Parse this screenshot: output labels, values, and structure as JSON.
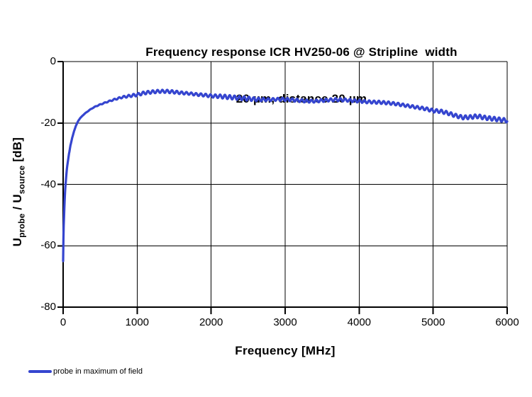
{
  "title": {
    "line1": "Frequency response ICR HV250-06 @ Stripline  width",
    "line2": "20 µm, distance 20 µm"
  },
  "axes": {
    "x": {
      "label": "Frequency [MHz]",
      "ticks": [
        "0",
        "1000",
        "2000",
        "3000",
        "4000",
        "5000",
        "6000"
      ]
    },
    "y": {
      "label_parts": {
        "u1": "U",
        "sub1": "probe",
        "mid": " / U",
        "sub2": "source",
        "unit": " [dB]"
      },
      "ticks": [
        "0",
        "-20",
        "-40",
        "-60",
        "-80"
      ]
    }
  },
  "legend": {
    "label": "probe in maximum of field"
  },
  "colors": {
    "series": "#3545CF",
    "axis": "#000000",
    "grid": "#000000",
    "background": "#FFFFFF",
    "text": "#000000"
  },
  "chart_data": {
    "type": "line",
    "title": "Frequency response ICR HV250-06 @ Stripline width 20 µm, distance 20 µm",
    "xlabel": "Frequency [MHz]",
    "ylabel": "Uprobe / Usource [dB]",
    "xlim": [
      0,
      6000
    ],
    "ylim": [
      -80,
      0
    ],
    "x_ticks": [
      0,
      1000,
      2000,
      3000,
      4000,
      5000,
      6000
    ],
    "y_ticks": [
      0,
      -20,
      -40,
      -60,
      -80
    ],
    "grid": true,
    "legend_position": "bottom-left",
    "series": [
      {
        "name": "probe in maximum of field",
        "color": "#3545CF",
        "trend_points": [
          [
            0,
            -65
          ],
          [
            4,
            -58
          ],
          [
            8,
            -53.5
          ],
          [
            12,
            -50.5
          ],
          [
            16,
            -47.8
          ],
          [
            20,
            -45.5
          ],
          [
            25,
            -43
          ],
          [
            30,
            -41
          ],
          [
            40,
            -37.8
          ],
          [
            50,
            -35.2
          ],
          [
            60,
            -33.2
          ],
          [
            80,
            -30
          ],
          [
            100,
            -27.2
          ],
          [
            125,
            -24.6
          ],
          [
            150,
            -22.5
          ],
          [
            175,
            -20.8
          ],
          [
            200,
            -19.5
          ],
          [
            225,
            -18.6
          ],
          [
            250,
            -17.9
          ],
          [
            300,
            -16.8
          ],
          [
            350,
            -15.9
          ],
          [
            400,
            -15.1
          ],
          [
            450,
            -14.5
          ],
          [
            500,
            -14.0
          ],
          [
            600,
            -13.1
          ],
          [
            700,
            -12.3
          ],
          [
            800,
            -11.6
          ],
          [
            900,
            -11.2
          ],
          [
            1000,
            -10.8
          ],
          [
            1100,
            -10.2
          ],
          [
            1200,
            -9.9
          ],
          [
            1300,
            -9.7
          ],
          [
            1400,
            -9.7
          ],
          [
            1500,
            -9.9
          ],
          [
            1600,
            -10.2
          ],
          [
            1700,
            -10.4
          ],
          [
            1800,
            -10.7
          ],
          [
            1900,
            -10.9
          ],
          [
            2000,
            -11.2
          ],
          [
            2100,
            -11.3
          ],
          [
            2200,
            -11.5
          ],
          [
            2300,
            -11.7
          ],
          [
            2400,
            -11.9
          ],
          [
            2500,
            -12.1
          ],
          [
            2600,
            -12.3
          ],
          [
            2700,
            -12.4
          ],
          [
            2800,
            -12.4
          ],
          [
            2900,
            -12.3
          ],
          [
            3000,
            -12.3
          ],
          [
            3100,
            -12.5
          ],
          [
            3200,
            -12.7
          ],
          [
            3300,
            -12.9
          ],
          [
            3400,
            -12.9
          ],
          [
            3500,
            -12.7
          ],
          [
            3600,
            -12.5
          ],
          [
            3700,
            -12.4
          ],
          [
            3800,
            -12.5
          ],
          [
            3900,
            -12.7
          ],
          [
            4000,
            -12.9
          ],
          [
            4100,
            -13.1
          ],
          [
            4200,
            -13.2
          ],
          [
            4300,
            -13.3
          ],
          [
            4400,
            -13.5
          ],
          [
            4500,
            -13.8
          ],
          [
            4600,
            -14.2
          ],
          [
            4700,
            -14.6
          ],
          [
            4800,
            -15.0
          ],
          [
            4900,
            -15.4
          ],
          [
            5000,
            -16.0
          ],
          [
            5100,
            -16.2
          ],
          [
            5200,
            -16.8
          ],
          [
            5300,
            -17.6
          ],
          [
            5400,
            -18.2
          ],
          [
            5500,
            -18.1
          ],
          [
            5600,
            -17.8
          ],
          [
            5700,
            -18.3
          ],
          [
            5800,
            -18.6
          ],
          [
            5900,
            -18.9
          ],
          [
            6000,
            -19.2
          ]
        ],
        "ripple": {
          "period_mhz": 65,
          "amplitude_anchors": [
            [
              0,
              0
            ],
            [
              250,
              0
            ],
            [
              400,
              0.08
            ],
            [
              600,
              0.15
            ],
            [
              800,
              0.3
            ],
            [
              950,
              0.45
            ],
            [
              1100,
              0.5
            ],
            [
              1500,
              0.5
            ],
            [
              1700,
              0.4
            ],
            [
              2000,
              0.5
            ],
            [
              2200,
              0.65
            ],
            [
              2500,
              0.65
            ],
            [
              2800,
              0.45
            ],
            [
              3100,
              0.5
            ],
            [
              3400,
              0.45
            ],
            [
              3700,
              0.5
            ],
            [
              4000,
              0.45
            ],
            [
              4300,
              0.5
            ],
            [
              4700,
              0.45
            ],
            [
              5000,
              0.55
            ],
            [
              5300,
              0.6
            ],
            [
              5600,
              0.65
            ],
            [
              6000,
              0.65
            ]
          ]
        }
      }
    ]
  }
}
